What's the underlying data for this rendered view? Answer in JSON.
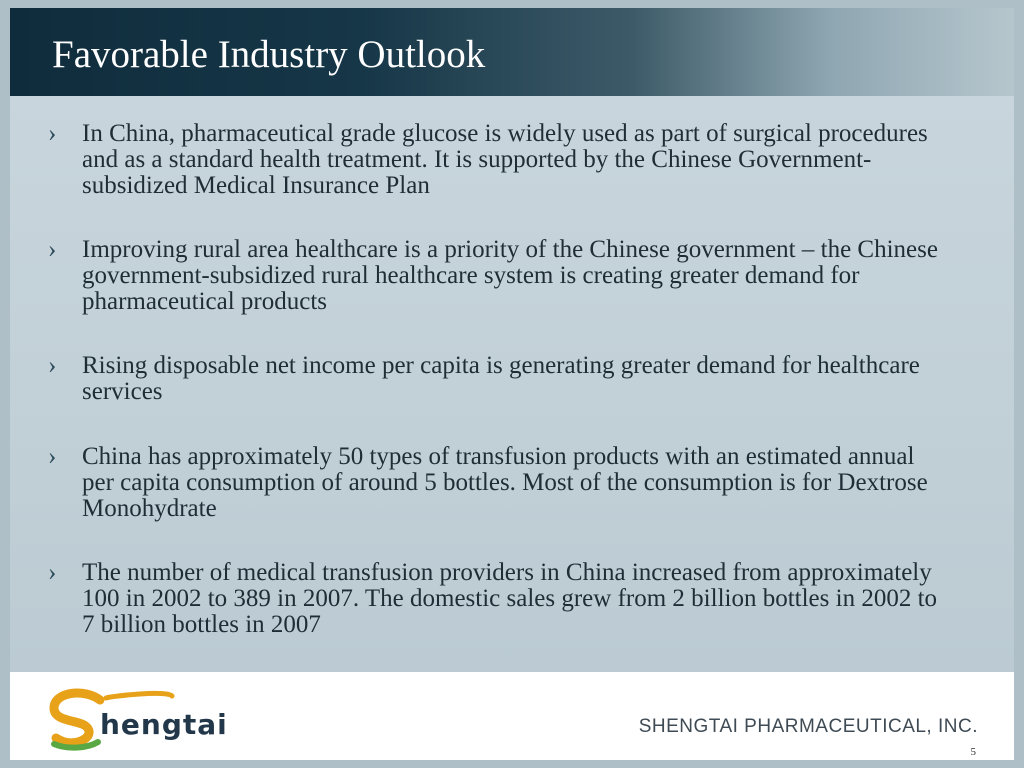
{
  "slide": {
    "title": "Favorable Industry Outlook",
    "bullet_marker": "›",
    "bullets": [
      "In China, pharmaceutical grade glucose is widely used as part of surgical procedures and as a standard health treatment. It is supported by the Chinese Government-subsidized Medical Insurance Plan",
      "Improving rural area healthcare is a priority of the Chinese government – the Chinese government-subsidized rural healthcare system is creating greater demand for pharmaceutical products",
      "Rising disposable net income per capita is generating greater demand for healthcare services",
      "China has approximately 50 types of transfusion products with an estimated annual per capita consumption of around 5 bottles. Most of the consumption is for Dextrose Monohydrate",
      "The number of medical transfusion providers in China increased from approximately 100 in 2002 to 389 in 2007. The domestic sales grew from 2 billion bottles in 2002 to 7 billion bottles in 2007"
    ]
  },
  "footer": {
    "logo_text": "hengtai",
    "company": "SHENGTAI PHARMACEUTICAL, INC.",
    "page_number": "5",
    "colors": {
      "logo_orange": "#e8a21a",
      "logo_green": "#5aa843",
      "logo_navy": "#22384a"
    }
  }
}
